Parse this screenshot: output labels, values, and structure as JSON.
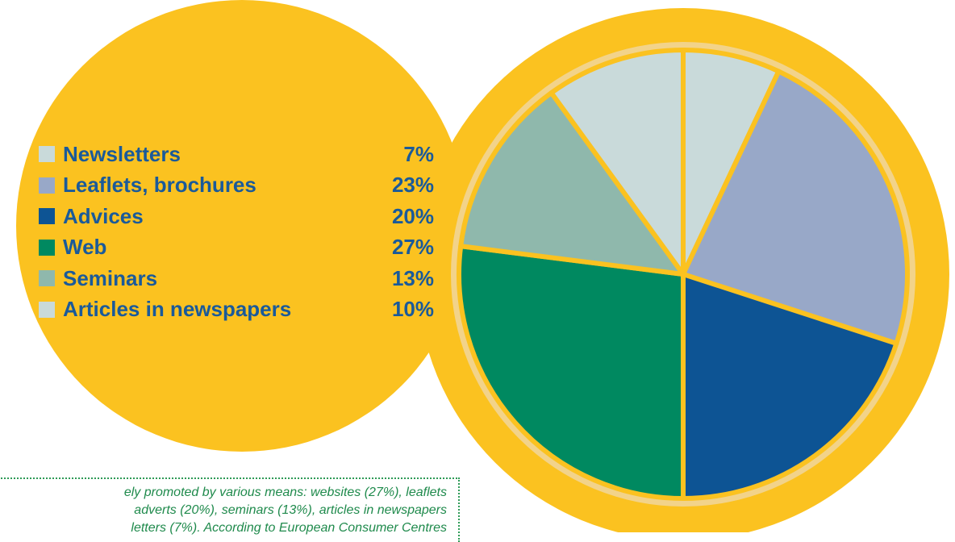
{
  "chart_data": {
    "type": "pie",
    "categories": [
      "Newsletters",
      "Leaflets, brochures",
      "Advices",
      "Web",
      "Seminars",
      "Articles in newspapers"
    ],
    "values": [
      7,
      23,
      20,
      27,
      13,
      10
    ],
    "value_labels": [
      "7%",
      "23%",
      "20%",
      "27%",
      "13%",
      "10%"
    ],
    "colors": [
      "#c9dada",
      "#98a8c8",
      "#0d5494",
      "#008960",
      "#8fb8ac",
      "#c9dada"
    ],
    "start_angle_deg": 0,
    "direction": "clockwise",
    "legend_position": "left",
    "ring_color": "#fbc220",
    "separator_color": "#f2d38a",
    "text_color": "#1a5a9a"
  },
  "caption": {
    "lines": [
      "ely promoted by various means: websites (27%), leaflets",
      "adverts (20%), seminars (13%), articles in newspapers",
      "letters (7%). According to European Consumer Centres"
    ],
    "color": "#1f8a4c"
  }
}
